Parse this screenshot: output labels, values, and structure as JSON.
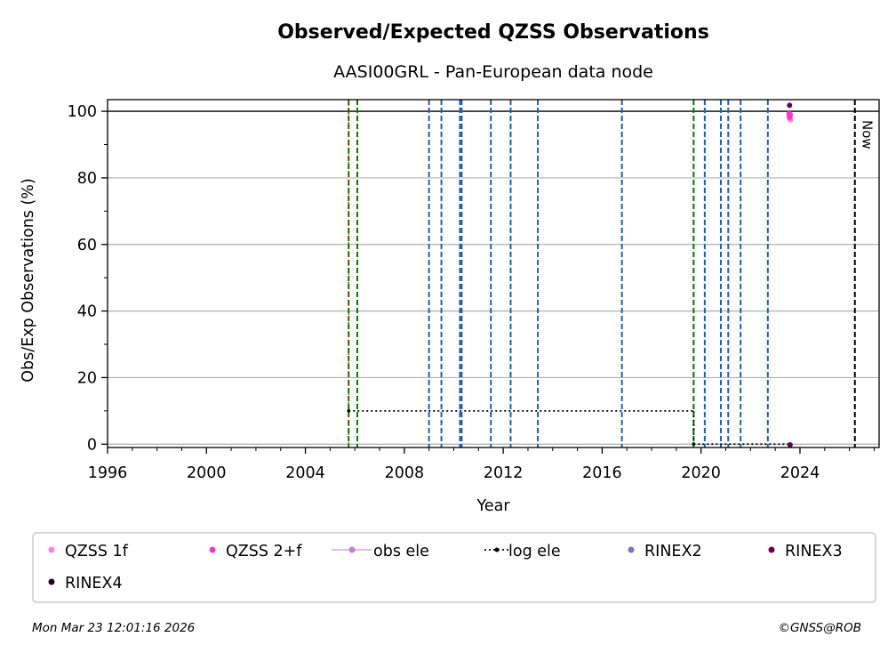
{
  "chart_data": {
    "type": "scatter",
    "title": "Observed/Expected QZSS Observations",
    "subtitle": "AASI00GRL - Pan-European data node",
    "xlabel": "Year",
    "ylabel": "Obs/Exp Observations (%)",
    "xlim": [
      1996,
      2027.2
    ],
    "ylim": [
      -1,
      103.5
    ],
    "x_ticks": [
      1996,
      2000,
      2004,
      2008,
      2012,
      2016,
      2020,
      2024
    ],
    "y_ticks": [
      0,
      20,
      40,
      60,
      80,
      100
    ],
    "grid": "horizontal",
    "reference_line": 100,
    "now_label": "Now",
    "now_x": 2026.22,
    "green_event_lines": [
      2005.75,
      2006.1,
      2019.7
    ],
    "red_event_lines": [
      2005.75
    ],
    "blue_event_lines": [
      2009.0,
      2009.5,
      2010.25,
      2010.32,
      2011.5,
      2012.3,
      2013.4,
      2016.8,
      2020.15,
      2020.8,
      2021.1,
      2021.6,
      2022.7
    ],
    "log_ele_segments": [
      {
        "x": [
          2005.75,
          2019.7
        ],
        "y": 10
      },
      {
        "x": [
          2019.7,
          2023.6
        ],
        "y": 0
      }
    ],
    "series": [
      {
        "name": "QZSS 1f",
        "color": "#ff80df",
        "points": [
          [
            2023.55,
            98.4
          ],
          [
            2023.58,
            97.8
          ],
          [
            2023.6,
            98.9
          ],
          [
            2023.62,
            97.4
          ]
        ]
      },
      {
        "name": "QZSS 2+f",
        "color": "#ff33cc",
        "points": [
          [
            2023.56,
            99.3
          ],
          [
            2023.59,
            98.2
          ],
          [
            2023.61,
            99.0
          ]
        ]
      },
      {
        "name": "obs ele",
        "color": "#c080d0",
        "points": []
      },
      {
        "name": "log ele",
        "color": "#000000",
        "points": []
      },
      {
        "name": "RINEX2",
        "color": "#7878b8",
        "points": []
      },
      {
        "name": "RINEX3",
        "color": "#660055",
        "points": [
          [
            2023.58,
            101.8
          ],
          [
            2023.6,
            -0.2
          ]
        ]
      },
      {
        "name": "RINEX4",
        "color": "#220022",
        "points": []
      }
    ]
  },
  "footer": {
    "timestamp": "Mon Mar 23 12:01:16 2026",
    "copyright": "©GNSS@ROB"
  }
}
